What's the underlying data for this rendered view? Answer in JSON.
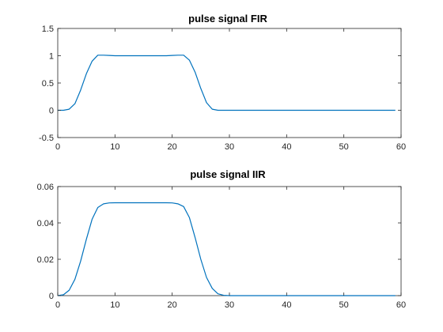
{
  "chart_data": [
    {
      "type": "line",
      "title": "pulse signal FIR",
      "xlabel": "",
      "ylabel": "",
      "xlim": [
        0,
        60
      ],
      "ylim": [
        -0.5,
        1.5
      ],
      "xticks": [
        0,
        10,
        20,
        30,
        40,
        50,
        60
      ],
      "xtick_labels": [
        "0",
        "10",
        "20",
        "30",
        "40",
        "50",
        "60"
      ],
      "yticks": [
        -0.5,
        0,
        0.5,
        1,
        1.5
      ],
      "ytick_labels": [
        "-0.5",
        "0",
        "0.5",
        "1",
        "1.5"
      ],
      "grid": false,
      "color": "#0072BD",
      "series": [
        {
          "x": [
            0,
            1,
            2,
            3,
            4,
            5,
            6,
            7,
            8,
            9,
            10,
            11,
            12,
            13,
            14,
            15,
            16,
            17,
            18,
            19,
            20,
            21,
            22,
            23,
            24,
            25,
            26,
            27,
            28,
            29,
            30,
            31,
            32,
            33,
            34,
            35,
            36,
            37,
            38,
            39,
            40,
            41,
            42,
            43,
            44,
            45,
            46,
            47,
            48,
            49,
            50,
            51,
            52,
            53,
            54,
            55,
            56,
            57,
            58,
            59
          ],
          "y": [
            0,
            0,
            0.02,
            0.12,
            0.37,
            0.67,
            0.9,
            1.01,
            1.01,
            1.005,
            1.0,
            1.0,
            1.0,
            1.0,
            1.0,
            1.0,
            1.0,
            1.0,
            1.0,
            1.0,
            1.005,
            1.01,
            1.01,
            0.92,
            0.7,
            0.4,
            0.14,
            0.02,
            0,
            0,
            0,
            0,
            0,
            0,
            0,
            0,
            0,
            0,
            0,
            0,
            0,
            0,
            0,
            0,
            0,
            0,
            0,
            0,
            0,
            0,
            0,
            0,
            0,
            0,
            0,
            0,
            0,
            0,
            0,
            0
          ]
        }
      ]
    },
    {
      "type": "line",
      "title": "pulse signal IIR",
      "xlabel": "",
      "ylabel": "",
      "xlim": [
        0,
        60
      ],
      "ylim": [
        0,
        0.06
      ],
      "xticks": [
        0,
        10,
        20,
        30,
        40,
        50,
        60
      ],
      "xtick_labels": [
        "0",
        "10",
        "20",
        "30",
        "40",
        "50",
        "60"
      ],
      "yticks": [
        0,
        0.02,
        0.04,
        0.06
      ],
      "ytick_labels": [
        "0",
        "0.02",
        "0.04",
        "0.06"
      ],
      "grid": false,
      "color": "#0072BD",
      "series": [
        {
          "x": [
            0,
            1,
            2,
            3,
            4,
            5,
            6,
            7,
            8,
            9,
            10,
            11,
            12,
            13,
            14,
            15,
            16,
            17,
            18,
            19,
            20,
            21,
            22,
            23,
            24,
            25,
            26,
            27,
            28,
            29,
            30,
            31,
            32,
            33,
            34,
            35,
            36,
            37,
            38,
            39,
            40,
            41,
            42,
            43,
            44,
            45,
            46,
            47,
            48,
            49,
            50,
            51,
            52,
            53,
            54,
            55,
            56,
            57,
            58,
            59
          ],
          "y": [
            0,
            0.0005,
            0.003,
            0.009,
            0.019,
            0.031,
            0.042,
            0.0485,
            0.0505,
            0.051,
            0.0511,
            0.0511,
            0.0511,
            0.0511,
            0.0511,
            0.0511,
            0.0511,
            0.0511,
            0.0511,
            0.0511,
            0.051,
            0.0505,
            0.049,
            0.043,
            0.032,
            0.02,
            0.01,
            0.004,
            0.001,
            0.0002,
            0,
            0,
            0,
            0,
            0,
            0,
            0,
            0,
            0,
            0,
            0,
            0,
            0,
            0,
            0,
            0,
            0,
            0,
            0,
            0,
            0,
            0,
            0,
            0,
            0,
            0,
            0,
            0,
            0,
            0
          ]
        }
      ]
    }
  ]
}
